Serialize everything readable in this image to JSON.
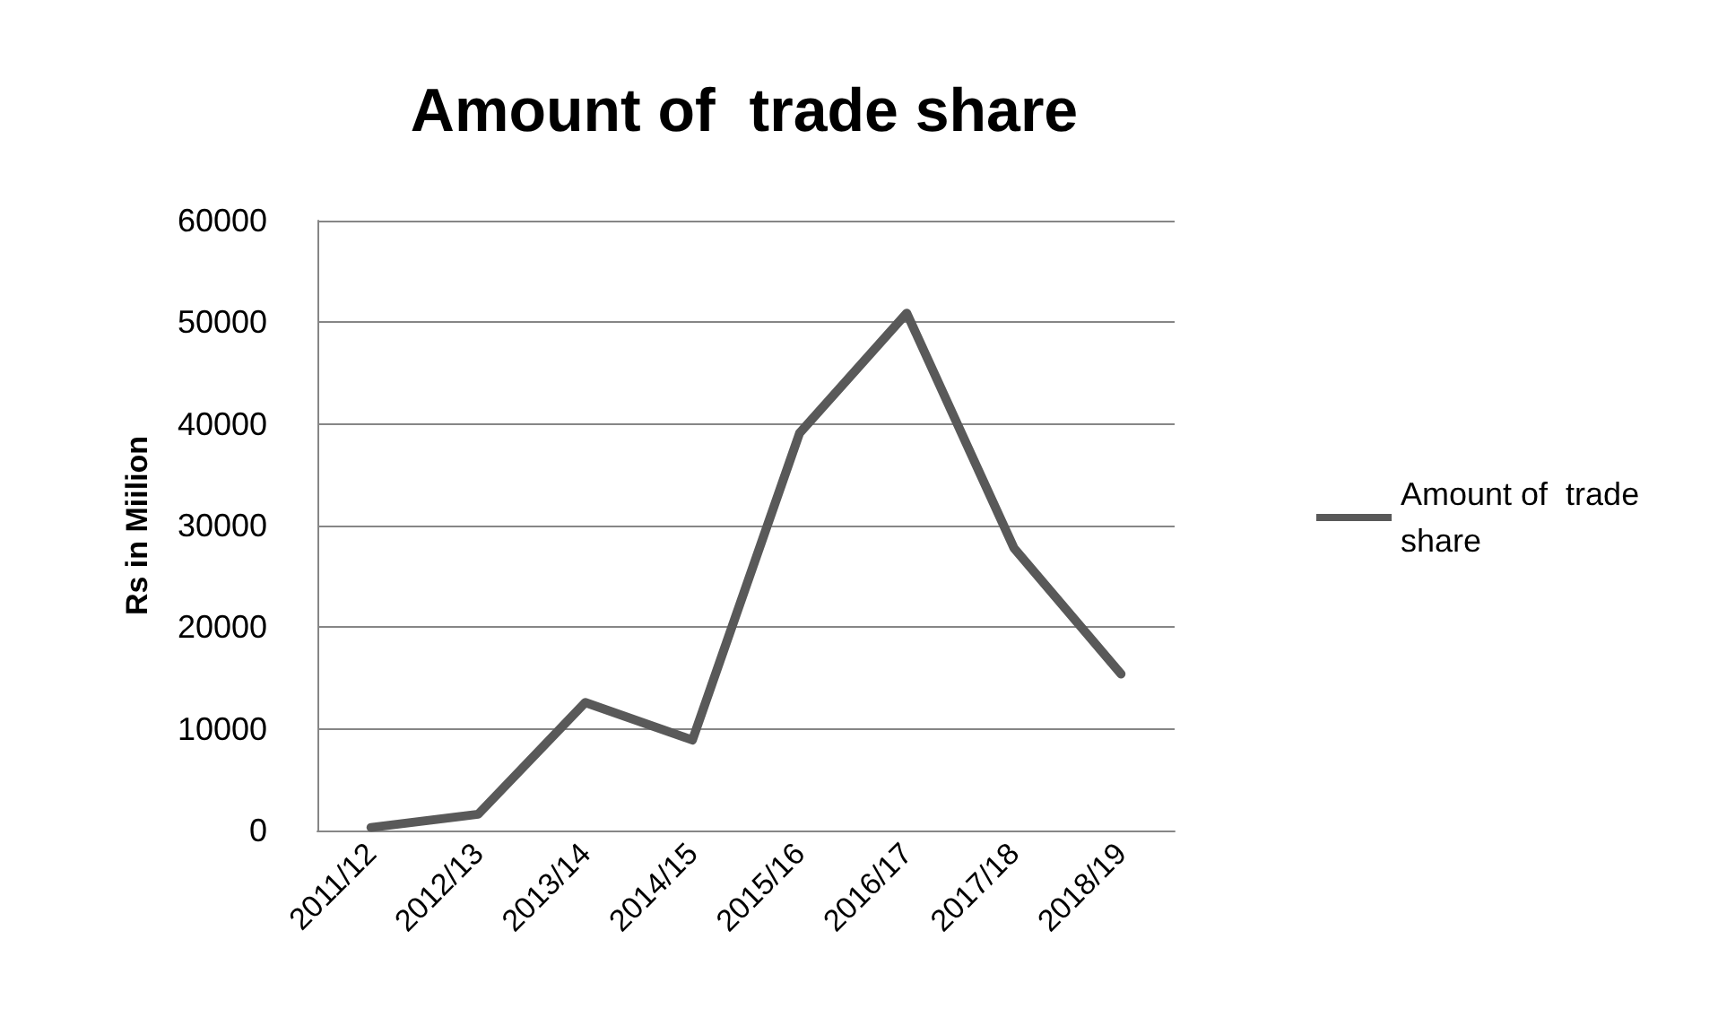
{
  "chart_data": {
    "type": "line",
    "title": "Amount of  trade share",
    "ylabel": "Rs in Miilion",
    "categories": [
      "2011/12",
      "2012/13",
      "2013/14",
      "2014/15",
      "2015/16",
      "2016/17",
      "2017/18",
      "2018/19"
    ],
    "series": [
      {
        "name": "Amount of  trade share",
        "color": "#595959",
        "values": [
          300,
          1600,
          12600,
          8900,
          39100,
          50900,
          27800,
          15400
        ]
      }
    ],
    "ylim": [
      0,
      60000
    ],
    "yticks": [
      0,
      10000,
      20000,
      30000,
      40000,
      50000,
      60000
    ],
    "grid": "y",
    "legend": "right",
    "marker": "none",
    "line_style": "solid"
  }
}
